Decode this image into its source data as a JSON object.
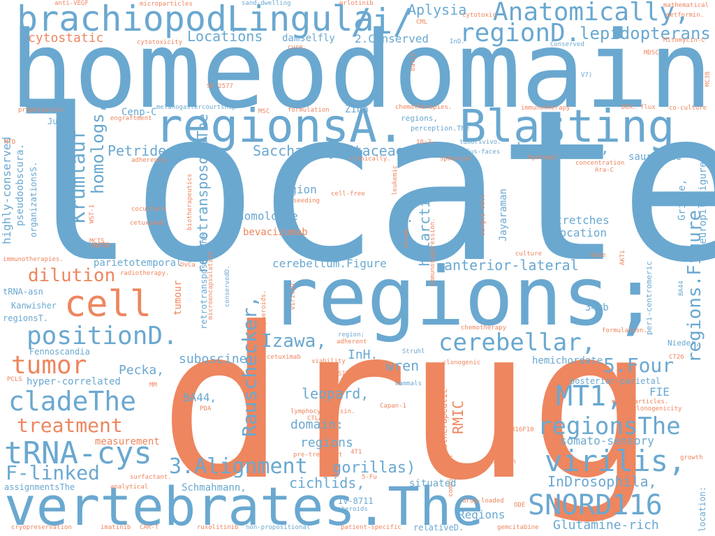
{
  "colors": {
    "blue": "#6aa8d0",
    "orange": "#ee865f",
    "background": "#ffffff"
  },
  "words": {
    "homeodomains": "homeodomains",
    "located": "located",
    "drug": "drug",
    "regions_semi": "regions;",
    "vertebrates": "vertebrates.The",
    "brachiopod": "brachiopodLingula",
    "slash_i": "/i/",
    "anatomically": "Anatomically,",
    "regionsA": "regionsA.",
    "blasting": "Blasting",
    "regionD": "regionD.",
    "lepidopterans": "lepidopterans",
    "aplysia": "Aplysia",
    "locations": "Locations",
    "damselfly": "damselfly",
    "conserved2": "2.Conserved",
    "cytostatic": "cytostatic",
    "krumlauf": "Krumlauf",
    "homologs": "homologs,",
    "petrides": "Petrides,",
    "saccharomycetaceae": "Saccharomycetaceae,",
    "homologues": "homologues,",
    "sauropsid": "sauropsid",
    "retrotransposonsThe": "retrotransposonsThe",
    "highly_conserved": "highly-conserved",
    "pseudoobscura": "pseudoobscura.",
    "organizationsS": "organizationsS.",
    "region": "region",
    "homologue": "homologue",
    "dD": "-D.",
    "holarctic": "holarctic",
    "jayaraman": "Jayaraman",
    "stretches": "Stretches",
    "location_cap": "Location",
    "grieve": "Grieve,",
    "neuropil": "neuropil.Figure",
    "bevacizumab": "bevacizumab",
    "dilution": "dilution",
    "cell": "cell",
    "parietotemporal": "parietotemporal",
    "cerebellum_fig": "cerebellum.Figure",
    "anterior_lateral": "anterior-lateral",
    "regions_figure": "regions.Figure",
    "tumour": "tumour",
    "retrotransposonsThe2": "retrotransposonsThe",
    "conservedD": "conservedD.",
    "positionD": "positionD.",
    "izawa": "Izawa,",
    "inh": "InH.",
    "cerebellar": "cerebellar,",
    "tumor": "tumor",
    "rauschecker": "Rauschecker,",
    "wren": "wren",
    "hemichordate": "hemichordate",
    "five_four": "5.Four",
    "cladeThe": "cladeThe",
    "mt1": "MT1,",
    "subocine": "suboscine",
    "pecka": "Pecka,",
    "leopard": "leopard,",
    "fie": "FIE",
    "posterior_parietal": "posterior-parietal",
    "treatment": "treatment",
    "regionsThe": "regionsThe",
    "somato_sensory": "somato-sensory",
    "rmic": "RMIC",
    "domain": "domain:",
    "regions_small": "regions",
    "trna_cys": "tRNA-cys",
    "virilis": "virilis,",
    "alignment": "3.Alignment",
    "gorillas": "gorillas)",
    "f_linked": "F-linked",
    "indrosophila": "InDrosophila,",
    "cichlids": "cichlids,",
    "snord116": "SNORD116",
    "regions_cap": "Regions",
    "glutamine": "Glutamine-rich",
    "schmahmann": "Schmahmann,",
    "situated": "situated",
    "iv8711": "IV-8711",
    "relativeD": "relativeD.",
    "assignmentsThe": "assignmentsThe",
    "hyper_correlated": "hyper-correlated",
    "fennoscandia": "Fennoscandia",
    "kanwisher": "Kanwisher",
    "regionsT": "regionsT.",
    "trna_asn": "tRNA-asn",
    "ba44_comma": "BA44,",
    "ba44": "BA44",
    "kb34": "34kb",
    "nieder": "Nieder,",
    "peri_centromeric": "peri-centromeric",
    "location_colon": "location:",
    "cenp_c": "Cenp-C",
    "jundi": "Jundi",
    "zinn": "Zinn",
    "melanogaster": "melanogastercourtship",
    "v7": "V7)",
    "perception": "perception.The",
    "regions_lower": "regions,",
    "mfus": "mFus-faces",
    "strahl": "Struhl",
    "region_semi": "region;",
    "measurement": "measurement",
    "anti_vegf": "anti-VEGF",
    "microparticles": "microparticles",
    "sand_dwelling": "sand-dwelling",
    "erlotinib": "erlotinib",
    "mathematical": "mathematical",
    "cml": "CML",
    "cytotoxic": "cytotoxic",
    "metformin": "metformin.",
    "cytotoxicity": "cytotoxicity",
    "cure": "cure.",
    "inD": "InD.",
    "conserved_small": "Conserved",
    "mitomycin": "Mitomycin-C",
    "mdsc": "MDSC",
    "mc38": "MC38",
    "batch": "batch",
    "sp2577": "SP-2577",
    "prophylactic": "prophylactic",
    "msc": "MSC",
    "formulation": "formulation",
    "chemotherapies": "chemotherapies.",
    "immunotherapy": "immunotherapy",
    "dox_flux": "DOX. flux",
    "co_culture": "co-culture",
    "engraftment": "engraftment",
    "mtd": "MTD",
    "adherence": "adherence.",
    "clinically": "clinically.",
    "h18_2": "18:2.",
    "tumorsvivo": "tumorsvivo.",
    "spheroid": "spheroid",
    "hydrogel": "hydrogel",
    "concentration": "concentration",
    "ara_c": "Ara-C",
    "leukemic": "leukemic",
    "seeding": "seeding",
    "cell_free": "cell-free",
    "wst1": "WST-1",
    "biotherapeutics": "biotherapeutics",
    "coculture": "coculture",
    "cetuximab": "cetuximab.",
    "single_cell": "single-cell",
    "mcts": "MCTS",
    "ag85b": "Ag85B",
    "serum": "serum",
    "immunosuppression": "immunosuppression.",
    "culture": "culture",
    "dose": "dose",
    "akti": "AKTi",
    "immunotherapies": "immunotherapies.",
    "ovca": "OvCa",
    "radiotherapy": "radiotherapy.",
    "microencapsulation": "microencapsulation",
    "viriliD": "viriliD.",
    "spheroids_small": "spheroids.",
    "chemotherapy": "chemotherapy",
    "formulation_dot": "formulation.",
    "adherent": "adherent",
    "cetuximab2": "cetuximab",
    "viability": "viability",
    "clonogenic": "clonogenic",
    "ct26": "CT26",
    "tmab": "Tmab",
    "pcls": "PCLS",
    "sirs": "SIRS",
    "mammals": "mammals",
    "csc": "CSC",
    "mm": "MM",
    "microparticles_dot": "microparticles.",
    "clonogenicity": "clonogenicity",
    "pda": "PDA",
    "lymphocyte": "lymphocyte",
    "nisin": "nisin.",
    "ctla4": "CTLA4",
    "capan1": "Capan-1",
    "chemotherapeutic": "chemotherapeutic",
    "b16f10": "B16F10",
    "pre_treatment": "pre-treatment",
    "t4": "4T1",
    "resazurin": "resazurin",
    "growth": "growth",
    "combination": "combination",
    "surfactant": "surfactant.",
    "five_fu": "5-Fu",
    "analytical": "analytical",
    "spheroids": "spheroids",
    "drug_loaded": "drug-loaded",
    "ode": "ODE",
    "cryopreservation": "cryopreservation",
    "imatinib": "imatinib",
    "car_t": "CAR-T",
    "ruxolitinib": "ruxolitinib",
    "non_propositional": "non-propositional",
    "patient_specific": "patient-specific",
    "gemcitabine": "gemcitabine"
  }
}
